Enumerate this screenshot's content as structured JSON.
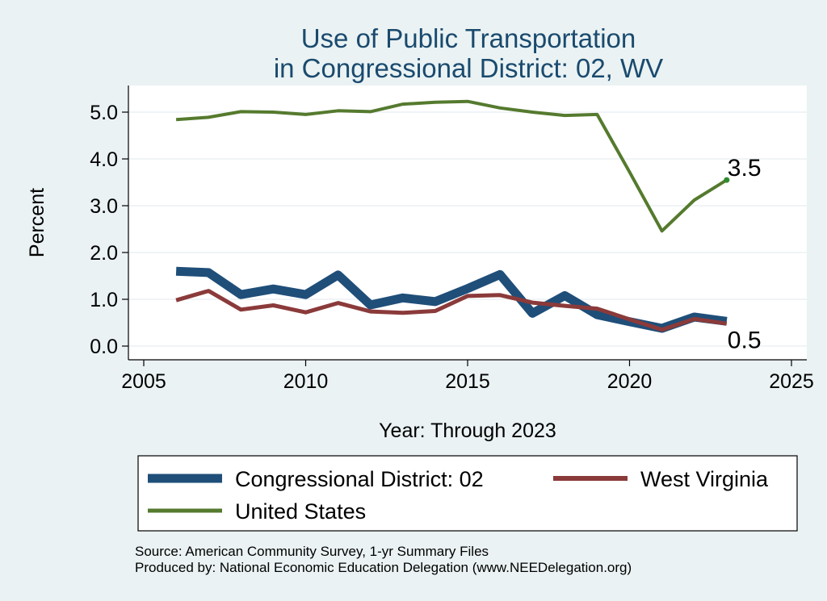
{
  "chart_data": {
    "type": "line",
    "title": [
      "Use of Public Transportation",
      "in Congressional District: 02, WV"
    ],
    "xlabel": "Year: Through 2023",
    "ylabel": "Percent",
    "xlim": [
      2005,
      2025
    ],
    "ylim": [
      0,
      5.3
    ],
    "x_ticks": [
      2005,
      2010,
      2015,
      2020,
      2025
    ],
    "y_ticks": [
      0,
      1,
      2,
      3,
      4,
      5
    ],
    "y_tick_labels": [
      "0.0",
      "1.0",
      "2.0",
      "3.0",
      "4.0",
      "5.0"
    ],
    "grid": true,
    "legend_position": "bottom",
    "series": [
      {
        "name": "Congressional District: 02",
        "color": "#1f4e79",
        "x": [
          2006,
          2007,
          2008,
          2009,
          2010,
          2011,
          2012,
          2013,
          2014,
          2015,
          2016,
          2017,
          2018,
          2019,
          2020,
          2021,
          2022,
          2023
        ],
        "y": [
          1.6,
          1.57,
          1.1,
          1.22,
          1.1,
          1.52,
          0.88,
          1.03,
          0.95,
          1.23,
          1.53,
          0.7,
          1.08,
          0.67,
          0.52,
          0.38,
          0.62,
          0.53
        ]
      },
      {
        "name": "West Virginia",
        "color": "#8b3a3a",
        "x": [
          2006,
          2007,
          2008,
          2009,
          2010,
          2011,
          2012,
          2013,
          2014,
          2015,
          2016,
          2017,
          2018,
          2019,
          2020,
          2021,
          2022,
          2023
        ],
        "y": [
          0.98,
          1.18,
          0.78,
          0.87,
          0.72,
          0.92,
          0.74,
          0.71,
          0.75,
          1.07,
          1.09,
          0.93,
          0.86,
          0.8,
          0.57,
          0.35,
          0.58,
          0.48
        ]
      },
      {
        "name": "United States",
        "color": "#557a2e",
        "x": [
          2006,
          2007,
          2008,
          2009,
          2010,
          2011,
          2012,
          2013,
          2014,
          2015,
          2016,
          2017,
          2018,
          2019,
          2020,
          2021,
          2022,
          2023
        ],
        "y": [
          4.84,
          4.89,
          5.01,
          5.0,
          4.95,
          5.03,
          5.01,
          5.17,
          5.21,
          5.23,
          5.09,
          5.0,
          4.93,
          4.95,
          3.72,
          2.46,
          3.12,
          3.55
        ]
      }
    ],
    "end_labels": [
      {
        "series": "United States",
        "text": "3.5"
      },
      {
        "series": "Congressional District: 02",
        "text": "0.5"
      }
    ]
  },
  "footer": {
    "source": "Source: American Community Survey, 1-yr Summary Files",
    "produced": "Produced by: National Economic Education Delegation (www.NEEDelegation.org)"
  }
}
